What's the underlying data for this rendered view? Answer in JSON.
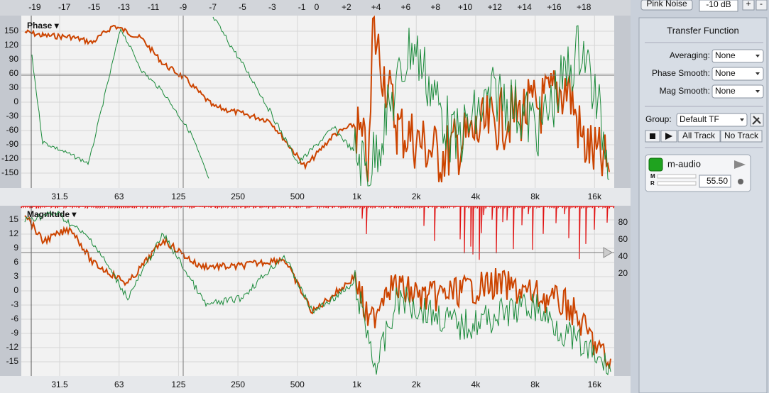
{
  "top_scale": [
    "-19",
    "-17",
    "-15",
    "-13",
    "-11",
    "-9",
    "-7",
    "-5",
    "-3",
    "-1",
    "0",
    "+2",
    "+4",
    "+6",
    "+8",
    "+10",
    "+12",
    "+14",
    "+16",
    "+18"
  ],
  "freq_labels": [
    "31.5",
    "63",
    "125",
    "250",
    "500",
    "1k",
    "2k",
    "4k",
    "8k",
    "16k"
  ],
  "phase_panel": {
    "label": "Phase ▾",
    "yticks": [
      150,
      120,
      90,
      60,
      30,
      0,
      -30,
      -60,
      -90,
      -120,
      -150
    ]
  },
  "magnitude_panel": {
    "label": "Magnitude ▾",
    "yticks": [
      15,
      12,
      9,
      6,
      3,
      0,
      -3,
      -6,
      -9,
      -12,
      -15
    ],
    "y2ticks": [
      80,
      60,
      40,
      20
    ]
  },
  "controls": {
    "pink_noise": "Pink Noise",
    "level": "-10 dB",
    "plus": "+",
    "minus": "-",
    "title": "Transfer Function",
    "averaging": {
      "label": "Averaging:",
      "value": "None"
    },
    "phase_smooth": {
      "label": "Phase Smooth:",
      "value": "None"
    },
    "mag_smooth": {
      "label": "Mag Smooth:",
      "value": "None"
    },
    "group": {
      "label": "Group:",
      "value": "Default TF"
    },
    "all_track": "All Track",
    "no_track": "No Track",
    "track": {
      "name": "m-audio",
      "m": "M",
      "r": "R",
      "delay": "55.50"
    }
  }
}
